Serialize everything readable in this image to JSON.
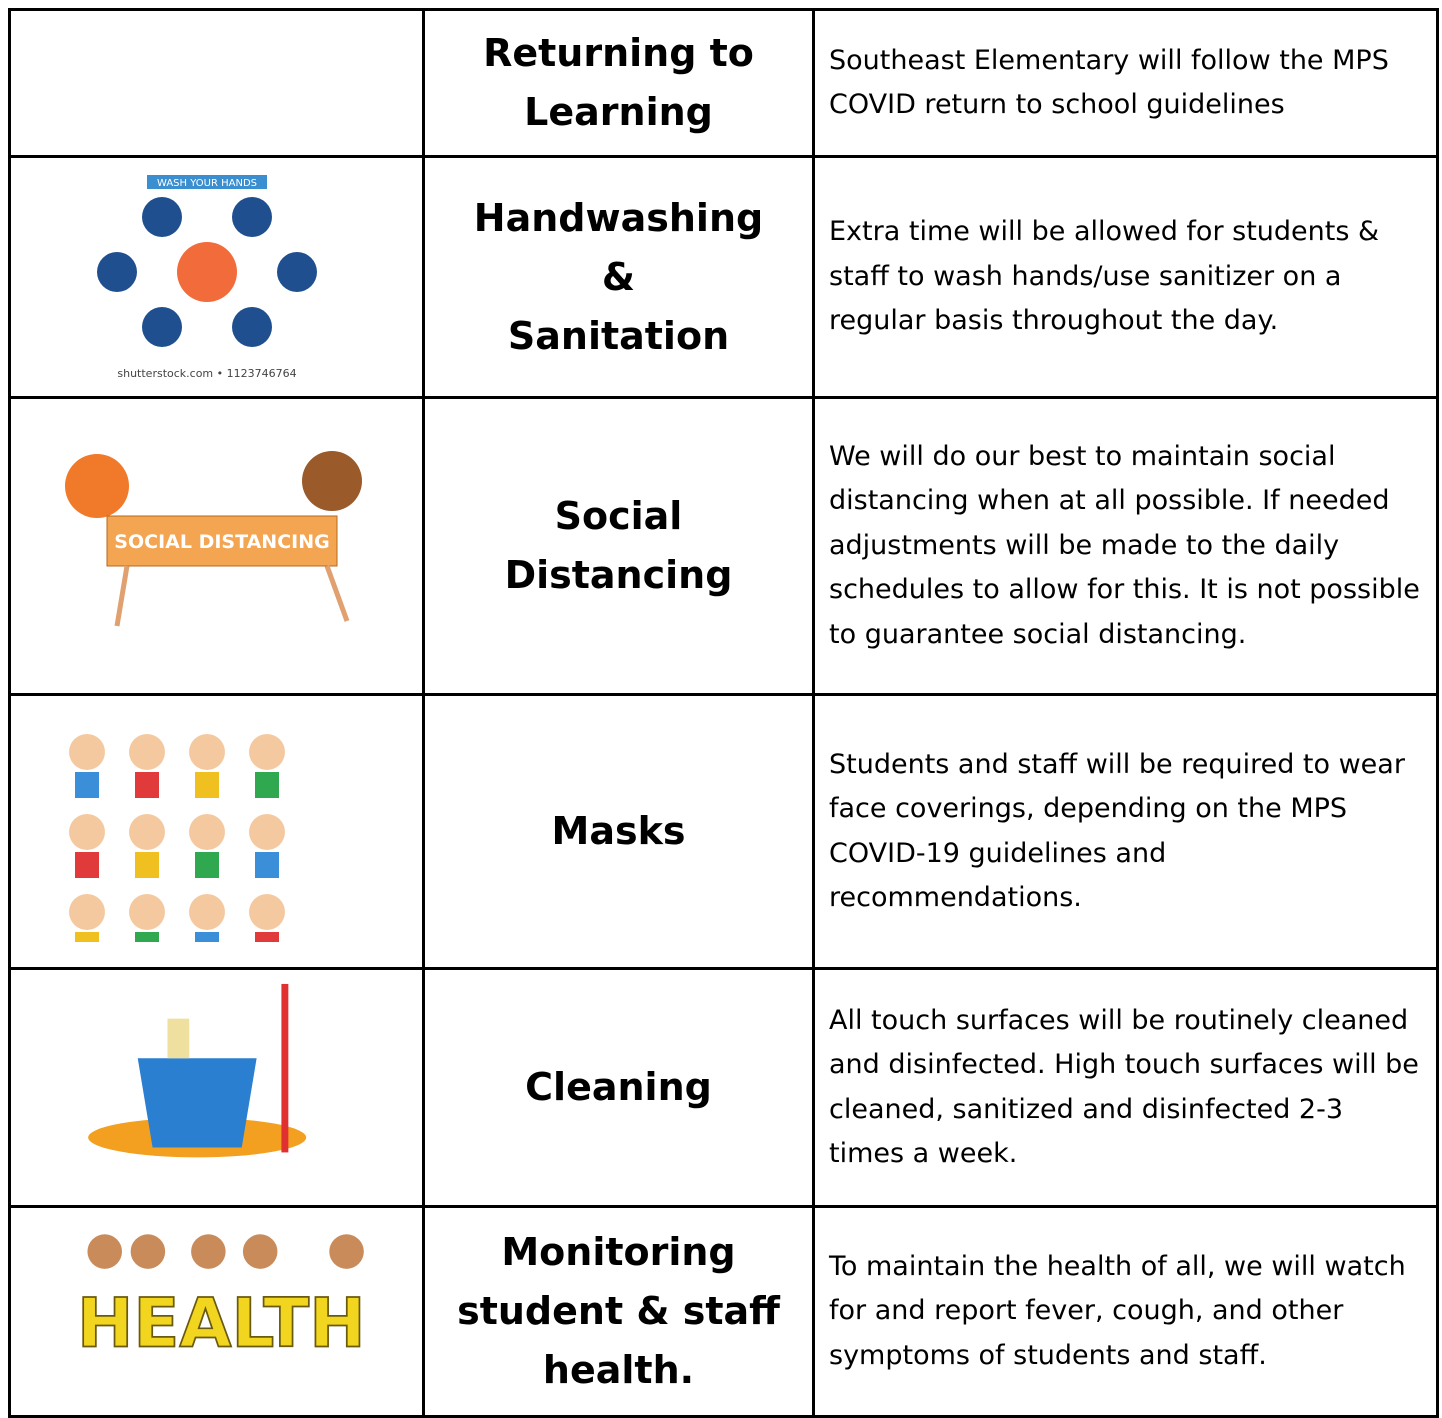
{
  "table": {
    "rows": [
      {
        "heading": [
          "Returning to",
          "Learning"
        ],
        "text": "Southeast Elementary will follow the MPS COVID return to school guidelines"
      },
      {
        "image_text": [
          "WASH YOUR HANDS",
          "shutterstock.com • 1123746764"
        ],
        "heading": [
          "Handwashing",
          "&",
          "Sanitation"
        ],
        "text": "Extra time will be allowed for students & staff to wash hands/use sanitizer on a regular basis throughout the day."
      },
      {
        "image_text": [
          "SOCIAL DISTANCING"
        ],
        "heading": [
          "Social",
          "Distancing"
        ],
        "text": "We will do our best to maintain social distancing when at all possible.  If needed adjustments will be made to the daily schedules to allow for this.  It is not possible to guarantee social distancing."
      },
      {
        "heading": [
          "Masks"
        ],
        "text": "Students and staff will be required to wear face coverings, depending on the MPS  COVID-19 guidelines and recommendations."
      },
      {
        "heading": [
          "Cleaning"
        ],
        "text": "All touch surfaces will be routinely cleaned and disinfected.  High touch surfaces will be cleaned, sanitized and disinfected 2-3 times a week."
      },
      {
        "image_text": [
          "HEALTH"
        ],
        "heading": [
          "Monitoring",
          "student & staff",
          "health."
        ],
        "text": "To maintain the health of all, we will watch for and report fever, cough, and other symptoms of students and staff."
      }
    ]
  }
}
